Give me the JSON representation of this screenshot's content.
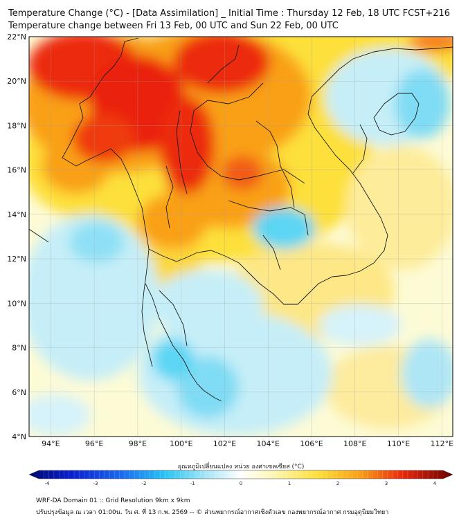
{
  "header": {
    "title_line1": "Temperature Change (°C) - [Data Assimilation] _ Initial Time : Thursday 12 Feb, 18 UTC FCST+216",
    "title_line2": "Temperature change between Fri 13 Feb, 00 UTC and Sun 22 Feb, 00 UTC"
  },
  "map": {
    "lat_labels": [
      "22°N",
      "20°N",
      "18°N",
      "16°N",
      "14°N",
      "12°N",
      "10°N",
      "8°N",
      "6°N",
      "4°N"
    ],
    "lon_labels": [
      "94°E",
      "96°E",
      "98°E",
      "100°E",
      "102°E",
      "104°E",
      "106°E",
      "108°E",
      "110°E",
      "112°E"
    ]
  },
  "colorbar": {
    "title": "อุณหภูมิเปลี่ยนแปลง หน่วย องศาเซลเซียส (°C)",
    "tick_labels": [
      "-4",
      "-3",
      "-2",
      "-1",
      "0",
      "1",
      "2",
      "3",
      "4"
    ]
  },
  "footer": {
    "line1": "WRF-DA Domain 01 :: Grid Resolution 9km x 9km",
    "line2": "ปรับปรุงข้อมูล ณ เวลา 01:00น. วัน ศ. ที่ 13 ก.พ. 2569 -- © ส่วนพยากรณ์อากาศเชิงตัวเลข กองพยากรณ์อากาศ กรมอุตุนิยมวิทยา"
  },
  "colors": {
    "warm_max": "#e8160c",
    "warm": "#f77a16",
    "mild": "#fde03a",
    "neutral": "#fdfbd6",
    "cool": "#aee6f6",
    "cold": "#2fd2f2"
  }
}
